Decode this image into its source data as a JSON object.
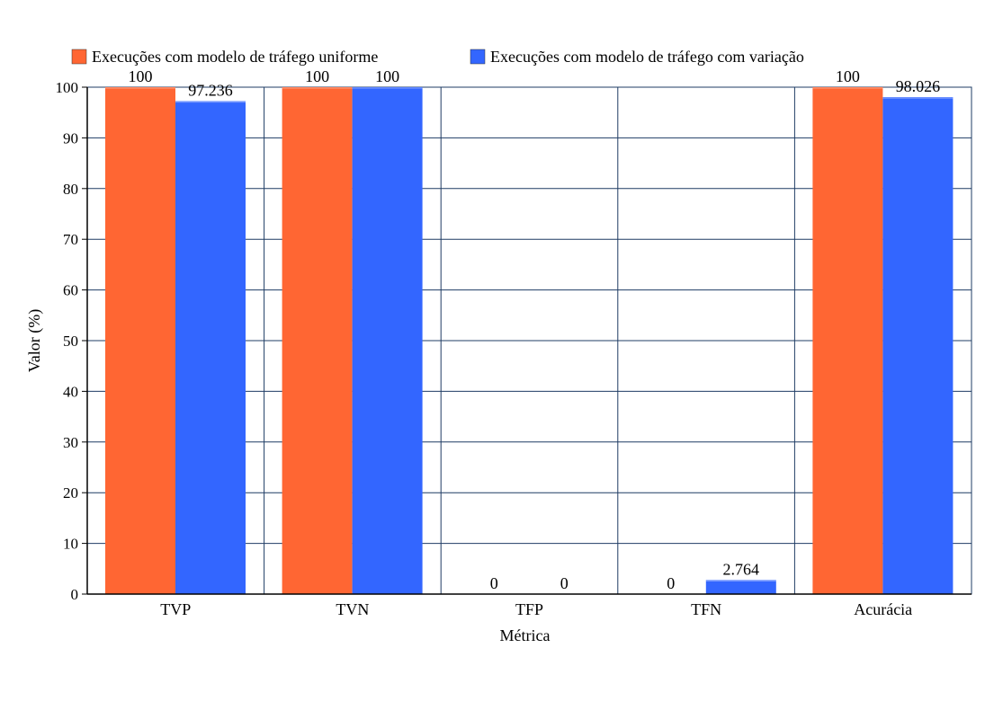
{
  "chart_data": {
    "type": "bar",
    "categories": [
      "TVP",
      "TVN",
      "TFP",
      "TFN",
      "Acurácia"
    ],
    "series": [
      {
        "name": "Execuções com modelo de tráfego uniforme",
        "values": [
          100,
          100,
          0,
          0,
          100
        ],
        "labels": [
          "100",
          "100",
          "0",
          "0",
          "100"
        ],
        "color": "#ff6633"
      },
      {
        "name": "Execuções com modelo de tráfego com variação",
        "values": [
          97.236,
          100,
          0,
          2.764,
          98.026
        ],
        "labels": [
          "97.236",
          "100",
          "0",
          "2.764",
          "98.026"
        ],
        "color": "#3366ff"
      }
    ],
    "title": "",
    "xlabel": "Métrica",
    "ylabel": "Valor (%)",
    "ylim": [
      0,
      100
    ],
    "yticks": [
      0,
      10,
      20,
      30,
      40,
      50,
      60,
      70,
      80,
      90,
      100
    ],
    "grid": true,
    "legend": "top"
  }
}
